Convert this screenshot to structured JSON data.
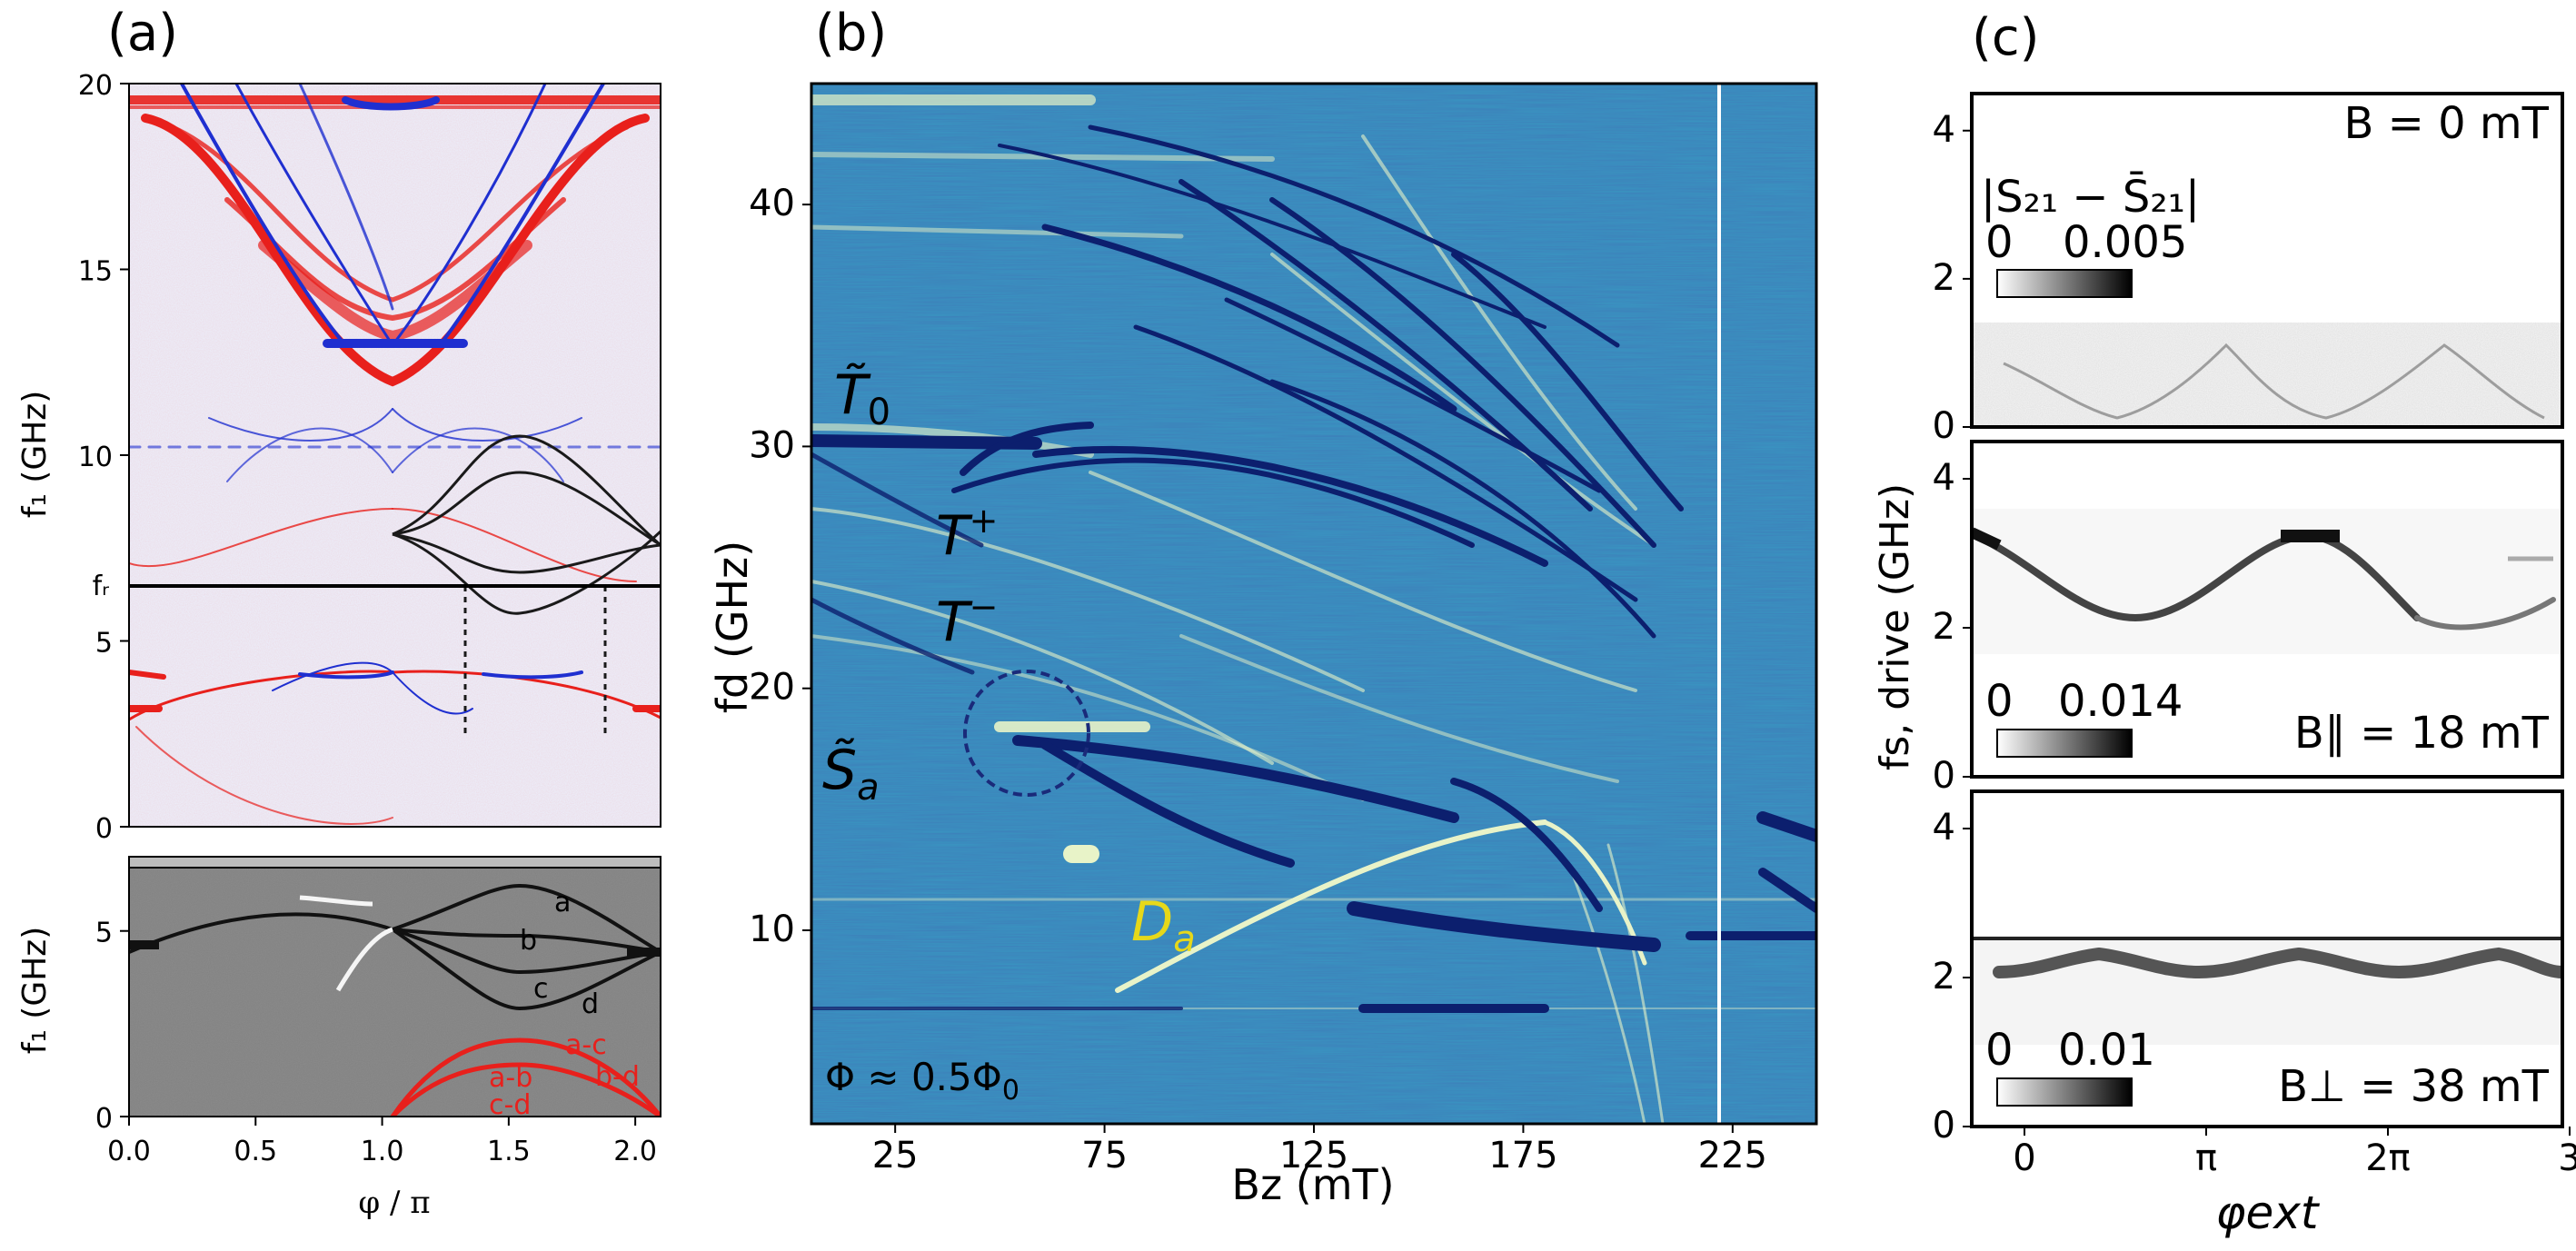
{
  "panels": {
    "a": "(a)",
    "b": "(b)",
    "c": "(c)"
  },
  "chart_data": [
    {
      "panel": "(a) top",
      "type": "heatmap",
      "xlabel": "",
      "ylabel": "f₁ (GHz)",
      "xlim": [
        0.0,
        2.1
      ],
      "ylim": [
        0,
        20
      ],
      "yticks": [
        "0",
        "5",
        "10",
        "15",
        "20"
      ],
      "fr_label": "fᵣ",
      "fr_value": 6.7,
      "colors": {
        "positive": "#e8201c",
        "negative": "#1f2fd0",
        "background": "#eceefa"
      },
      "model_curves_color": "#1a1a1a"
    },
    {
      "panel": "(a) bottom",
      "type": "heatmap",
      "xlabel": "φ / π",
      "ylabel": "f₁ (GHz)",
      "xlim": [
        0.0,
        2.1
      ],
      "ylim": [
        0,
        7
      ],
      "xticks": [
        "0.0",
        "0.5",
        "1.0",
        "1.5",
        "2.0"
      ],
      "yticks": [
        "0",
        "5"
      ],
      "transitions_black": [
        "a",
        "b",
        "c",
        "d"
      ],
      "transitions_red": [
        "a-c",
        "b-d",
        "a-b",
        "c-d"
      ],
      "colors": {
        "black": "#111111",
        "red": "#e8201c",
        "background": "#8a8a8a"
      }
    },
    {
      "panel": "(b)",
      "type": "heatmap",
      "xlabel": "Bz (mT)",
      "ylabel": "fd (GHz)",
      "xlim": [
        5,
        245
      ],
      "ylim": [
        2,
        45
      ],
      "xticks": [
        "25",
        "75",
        "125",
        "175",
        "225"
      ],
      "yticks": [
        "10",
        "20",
        "30",
        "40"
      ],
      "annotations": {
        "T0": "T̃",
        "T0_sub": "0",
        "Tplus": "T",
        "Tplus_sup": "+",
        "Tminus": "T",
        "Tminus_sup": "−",
        "Sa": "S̃",
        "Sa_sub": "a",
        "Da": "D",
        "Da_sub": "a",
        "flux": "Φ ≈ 0.5Φ",
        "flux_sub": "0"
      },
      "colors": {
        "background": "#3a92c0",
        "dark": "#0c1f6e",
        "light": "#e8f3c8",
        "accent": "#e6d81a"
      }
    },
    {
      "panel": "(c) top",
      "type": "heatmap",
      "field_label": "B = 0 mT",
      "colorbar_label": "|S₂₁ − S̄₂₁|",
      "colorbar_range": [
        "0",
        "0.005"
      ],
      "ylim": [
        0,
        4.5
      ],
      "yticks": [
        "0",
        "2",
        "4"
      ]
    },
    {
      "panel": "(c) middle",
      "type": "heatmap",
      "field_label": "B∥ = 18 mT",
      "colorbar_range": [
        "0",
        "0.014"
      ],
      "ylabel": "fs, drive (GHz)",
      "ylim": [
        0,
        4.5
      ],
      "yticks": [
        "0",
        "2",
        "4"
      ]
    },
    {
      "panel": "(c) bottom",
      "type": "heatmap",
      "field_label": "B⊥ = 38 mT",
      "colorbar_range": [
        "0",
        "0.01"
      ],
      "xlabel": "φext",
      "xticks": [
        "0",
        "π",
        "2π",
        "3"
      ],
      "ylim": [
        0,
        4.5
      ],
      "yticks": [
        "0",
        "2",
        "4"
      ]
    }
  ]
}
